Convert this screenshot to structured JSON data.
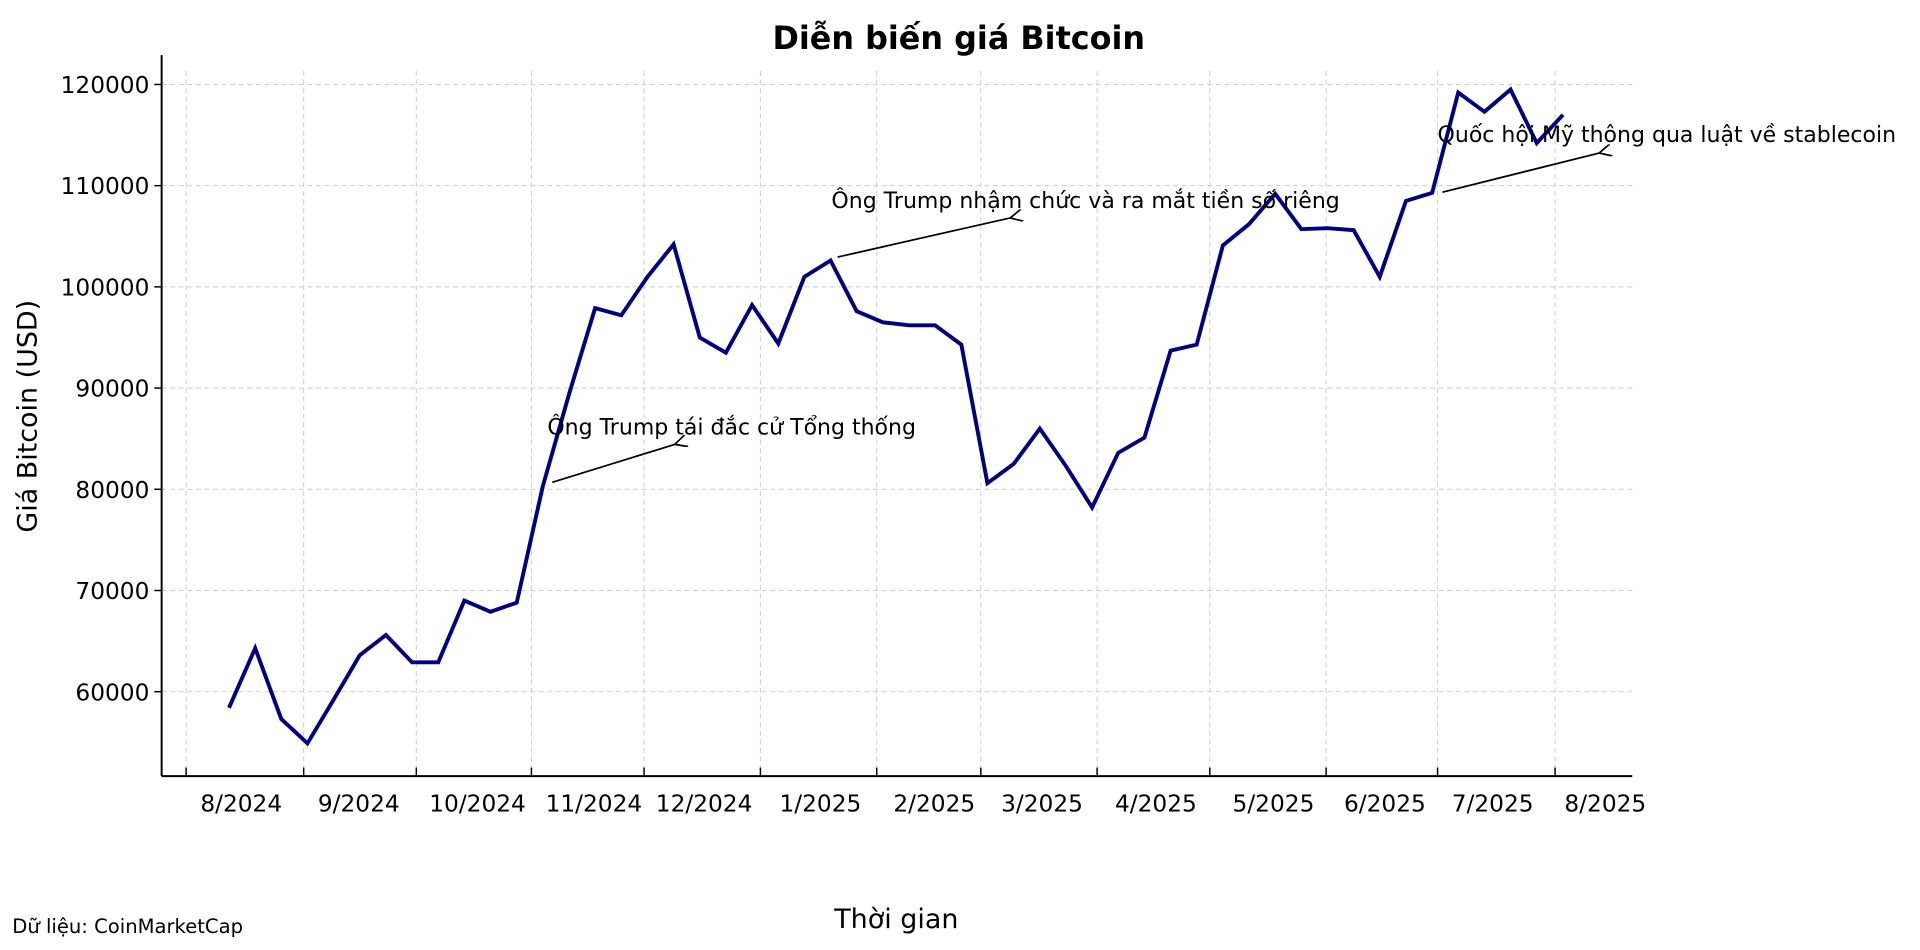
{
  "chart_data": {
    "type": "line",
    "title": "Diễn biến giá Bitcoin",
    "xlabel": "Thời gian",
    "ylabel": "Giá Bitcoin (USD)",
    "ylim": [
      52000,
      122000
    ],
    "grid": true,
    "legend": null,
    "x_tick_labels": [
      "8/2024",
      "9/2024",
      "10/2024",
      "11/2024",
      "12/2024",
      "1/2025",
      "2/2025",
      "3/2025",
      "4/2025",
      "5/2025",
      "6/2025",
      "7/2025",
      "8/2025"
    ],
    "y_tick_labels": [
      "60000",
      "70000",
      "80000",
      "90000",
      "100000",
      "110000",
      "120000"
    ],
    "series": [
      {
        "name": "Bitcoin",
        "color": "#000080",
        "x": [
          "2024-07-28",
          "2024-08-04",
          "2024-08-11",
          "2024-08-18",
          "2024-08-25",
          "2024-09-01",
          "2024-09-08",
          "2024-09-15",
          "2024-09-22",
          "2024-09-29",
          "2024-10-06",
          "2024-10-13",
          "2024-10-20",
          "2024-10-27",
          "2024-11-03",
          "2024-11-10",
          "2024-11-17",
          "2024-11-24",
          "2024-12-01",
          "2024-12-08",
          "2024-12-15",
          "2024-12-22",
          "2024-12-29",
          "2025-01-05",
          "2025-01-12",
          "2025-01-19",
          "2025-01-26",
          "2025-02-02",
          "2025-02-09",
          "2025-02-16",
          "2025-02-23",
          "2025-03-02",
          "2025-03-09",
          "2025-03-16",
          "2025-03-23",
          "2025-03-30",
          "2025-04-06",
          "2025-04-13",
          "2025-04-20",
          "2025-04-27",
          "2025-05-04",
          "2025-05-11",
          "2025-05-18",
          "2025-05-25",
          "2025-06-01",
          "2025-06-08",
          "2025-06-15",
          "2025-06-22",
          "2025-06-29",
          "2025-07-06",
          "2025-07-13",
          "2025-07-20"
        ],
        "values": [
          58400,
          64300,
          57300,
          54900,
          59200,
          63600,
          65600,
          62900,
          62900,
          69000,
          67900,
          68800,
          80300,
          89400,
          97900,
          97200,
          101000,
          104200,
          95000,
          93500,
          98200,
          94400,
          101000,
          102600,
          97600,
          96500,
          96200,
          96200,
          94300,
          80600,
          82500,
          86000,
          82300,
          78200,
          83600,
          85100,
          93700,
          94300,
          104100,
          106200,
          109200,
          105700,
          105800,
          105600,
          101000,
          108500,
          109300,
          119200,
          117300,
          119500,
          114200,
          117000
        ]
      }
    ],
    "annotations": [
      {
        "text": "Ông Trump tái đắc cử Tổng thống",
        "point_value": 80300
      },
      {
        "text": "Ông Trump nhậm chức và ra mắt tiền số riêng",
        "point_value": 102600
      },
      {
        "text": "Quốc hội Mỹ thông qua luật về stablecoin",
        "point_value": 109300
      }
    ],
    "source": "Dữ liệu: CoinMarketCap"
  },
  "labels": {
    "title": "Diễn biến giá Bitcoin",
    "xlabel": "Thời gian",
    "ylabel": "Giá Bitcoin (USD)",
    "source": "Dữ liệu: CoinMarketCap",
    "annot1": "Ông Trump tái đắc cử Tổng thống",
    "annot2": "Ông Trump nhậm chức và ra mắt tiền số riêng",
    "annot3": "Quốc hội Mỹ thông qua luật về stablecoin",
    "x_ticks": [
      "8/2024",
      "9/2024",
      "10/2024",
      "11/2024",
      "12/2024",
      "1/2025",
      "2/2025",
      "3/2025",
      "4/2025",
      "5/2025",
      "6/2025",
      "7/2025",
      "8/2025"
    ],
    "y_ticks": [
      "60000",
      "70000",
      "80000",
      "90000",
      "100000",
      "110000",
      "120000"
    ]
  },
  "colors": {
    "line": "#000080",
    "grid": "#cccccc",
    "axis": "#000000"
  }
}
